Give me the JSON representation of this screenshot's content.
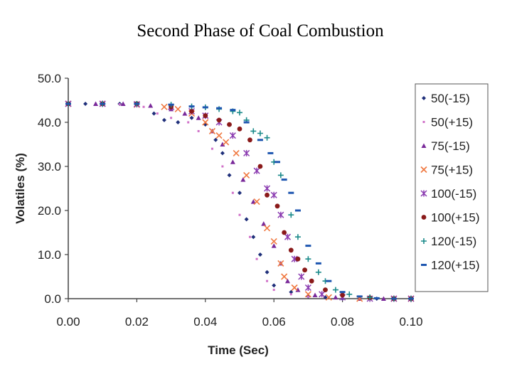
{
  "slide": {
    "title": "Second Phase of Coal Combustion"
  },
  "chart_data": {
    "type": "scatter",
    "title": "Second Phase of Coal Combustion",
    "xlabel": "Time (Sec)",
    "ylabel": "Volatiles (%)",
    "xlim": [
      0.0,
      0.1
    ],
    "ylim": [
      0.0,
      50.0
    ],
    "x_ticks": [
      "0.00",
      "0.02",
      "0.04",
      "0.06",
      "0.08",
      "0.10"
    ],
    "y_ticks": [
      "0.0",
      "10.0",
      "20.0",
      "30.0",
      "40.0",
      "50.0"
    ],
    "grid": false,
    "legend_position": "right",
    "series": [
      {
        "name": "50(-15)",
        "color": "#1f2f7a",
        "marker": "diamond",
        "points": [
          [
            0.0,
            44.2
          ],
          [
            0.005,
            44.2
          ],
          [
            0.01,
            44.2
          ],
          [
            0.015,
            44.2
          ],
          [
            0.02,
            44.1
          ],
          [
            0.025,
            42.0
          ],
          [
            0.028,
            40.5
          ],
          [
            0.032,
            40.0
          ],
          [
            0.036,
            41.0
          ],
          [
            0.04,
            39.5
          ],
          [
            0.043,
            36.0
          ],
          [
            0.045,
            33.0
          ],
          [
            0.047,
            28.0
          ],
          [
            0.05,
            24.0
          ],
          [
            0.052,
            18.0
          ],
          [
            0.054,
            14.0
          ],
          [
            0.056,
            10.0
          ],
          [
            0.058,
            6.0
          ],
          [
            0.06,
            3.0
          ],
          [
            0.065,
            1.5
          ],
          [
            0.07,
            0.5
          ],
          [
            0.075,
            0.3
          ],
          [
            0.08,
            0.0
          ],
          [
            0.085,
            0.0
          ],
          [
            0.09,
            0.0
          ],
          [
            0.095,
            0.0
          ],
          [
            0.1,
            0.0
          ]
        ]
      },
      {
        "name": "50(+15)",
        "color": "#d070c8",
        "marker": "dot",
        "points": [
          [
            0.0,
            44.2
          ],
          [
            0.008,
            44.2
          ],
          [
            0.015,
            44.1
          ],
          [
            0.022,
            43.5
          ],
          [
            0.026,
            42.0
          ],
          [
            0.03,
            41.0
          ],
          [
            0.035,
            40.0
          ],
          [
            0.038,
            38.0
          ],
          [
            0.042,
            34.0
          ],
          [
            0.045,
            30.0
          ],
          [
            0.048,
            24.0
          ],
          [
            0.05,
            19.0
          ],
          [
            0.053,
            14.0
          ],
          [
            0.055,
            9.0
          ],
          [
            0.058,
            4.0
          ],
          [
            0.06,
            2.0
          ],
          [
            0.065,
            1.0
          ],
          [
            0.07,
            0.4
          ],
          [
            0.078,
            0.2
          ],
          [
            0.085,
            0.0
          ],
          [
            0.092,
            0.0
          ],
          [
            0.1,
            0.0
          ]
        ]
      },
      {
        "name": "75(-15)",
        "color": "#7a2a9a",
        "marker": "triangle",
        "points": [
          [
            0.0,
            44.2
          ],
          [
            0.008,
            44.2
          ],
          [
            0.016,
            44.2
          ],
          [
            0.024,
            43.8
          ],
          [
            0.03,
            43.0
          ],
          [
            0.034,
            42.0
          ],
          [
            0.038,
            41.0
          ],
          [
            0.042,
            38.0
          ],
          [
            0.045,
            35.0
          ],
          [
            0.048,
            31.0
          ],
          [
            0.051,
            27.0
          ],
          [
            0.054,
            22.0
          ],
          [
            0.057,
            17.0
          ],
          [
            0.06,
            12.0
          ],
          [
            0.062,
            8.0
          ],
          [
            0.064,
            4.0
          ],
          [
            0.067,
            2.0
          ],
          [
            0.072,
            0.8
          ],
          [
            0.078,
            0.3
          ],
          [
            0.085,
            0.0
          ],
          [
            0.092,
            0.0
          ],
          [
            0.1,
            0.0
          ]
        ]
      },
      {
        "name": "75(+15)",
        "color": "#f07840",
        "marker": "x",
        "points": [
          [
            0.0,
            44.2
          ],
          [
            0.01,
            44.2
          ],
          [
            0.02,
            44.0
          ],
          [
            0.028,
            43.5
          ],
          [
            0.032,
            43.0
          ],
          [
            0.036,
            42.0
          ],
          [
            0.04,
            40.0
          ],
          [
            0.042,
            38.0
          ],
          [
            0.044,
            37.0
          ],
          [
            0.046,
            35.5
          ],
          [
            0.049,
            33.0
          ],
          [
            0.052,
            28.0
          ],
          [
            0.055,
            22.0
          ],
          [
            0.058,
            16.0
          ],
          [
            0.06,
            13.0
          ],
          [
            0.062,
            8.0
          ],
          [
            0.063,
            5.0
          ],
          [
            0.066,
            2.5
          ],
          [
            0.07,
            1.0
          ],
          [
            0.076,
            0.3
          ],
          [
            0.085,
            0.0
          ],
          [
            0.095,
            0.0
          ],
          [
            0.1,
            0.0
          ]
        ]
      },
      {
        "name": "100(-15)",
        "color": "#8a3ab0",
        "marker": "star",
        "points": [
          [
            0.0,
            44.2
          ],
          [
            0.01,
            44.2
          ],
          [
            0.02,
            44.1
          ],
          [
            0.03,
            43.5
          ],
          [
            0.036,
            42.5
          ],
          [
            0.04,
            41.5
          ],
          [
            0.044,
            40.0
          ],
          [
            0.048,
            37.0
          ],
          [
            0.052,
            33.0
          ],
          [
            0.055,
            29.0
          ],
          [
            0.058,
            25.0
          ],
          [
            0.06,
            23.5
          ],
          [
            0.062,
            19.0
          ],
          [
            0.064,
            14.0
          ],
          [
            0.066,
            9.0
          ],
          [
            0.068,
            5.0
          ],
          [
            0.07,
            2.5
          ],
          [
            0.074,
            1.0
          ],
          [
            0.08,
            0.3
          ],
          [
            0.088,
            0.0
          ],
          [
            0.095,
            0.0
          ],
          [
            0.1,
            0.0
          ]
        ]
      },
      {
        "name": "100(+15)",
        "color": "#8a1a1a",
        "marker": "circle",
        "points": [
          [
            0.0,
            44.2
          ],
          [
            0.01,
            44.2
          ],
          [
            0.02,
            44.2
          ],
          [
            0.03,
            43.5
          ],
          [
            0.036,
            42.5
          ],
          [
            0.04,
            41.5
          ],
          [
            0.044,
            40.5
          ],
          [
            0.047,
            39.5
          ],
          [
            0.05,
            38.5
          ],
          [
            0.053,
            36.0
          ],
          [
            0.056,
            30.0
          ],
          [
            0.058,
            23.5
          ],
          [
            0.061,
            21.0
          ],
          [
            0.063,
            15.0
          ],
          [
            0.065,
            11.0
          ],
          [
            0.067,
            9.0
          ],
          [
            0.069,
            6.5
          ],
          [
            0.071,
            4.0
          ],
          [
            0.075,
            2.0
          ],
          [
            0.08,
            0.8
          ],
          [
            0.088,
            0.2
          ],
          [
            0.095,
            0.0
          ],
          [
            0.1,
            0.0
          ]
        ]
      },
      {
        "name": "120(-15)",
        "color": "#1a8a8a",
        "marker": "plus",
        "points": [
          [
            0.0,
            44.2
          ],
          [
            0.01,
            44.2
          ],
          [
            0.02,
            44.2
          ],
          [
            0.03,
            44.0
          ],
          [
            0.036,
            43.6
          ],
          [
            0.04,
            43.4
          ],
          [
            0.044,
            43.0
          ],
          [
            0.048,
            42.5
          ],
          [
            0.05,
            42.2
          ],
          [
            0.052,
            40.5
          ],
          [
            0.054,
            38.0
          ],
          [
            0.056,
            37.5
          ],
          [
            0.058,
            36.5
          ],
          [
            0.06,
            31.0
          ],
          [
            0.062,
            28.0
          ],
          [
            0.065,
            19.0
          ],
          [
            0.067,
            14.0
          ],
          [
            0.07,
            9.0
          ],
          [
            0.073,
            6.0
          ],
          [
            0.075,
            4.0
          ],
          [
            0.078,
            2.0
          ],
          [
            0.082,
            1.0
          ],
          [
            0.088,
            0.3
          ],
          [
            0.095,
            0.0
          ],
          [
            0.1,
            0.0
          ]
        ]
      },
      {
        "name": "120(+15)",
        "color": "#1e56b0",
        "marker": "dash",
        "points": [
          [
            0.0,
            44.2
          ],
          [
            0.01,
            44.2
          ],
          [
            0.02,
            44.2
          ],
          [
            0.03,
            44.0
          ],
          [
            0.036,
            43.6
          ],
          [
            0.04,
            43.4
          ],
          [
            0.044,
            43.2
          ],
          [
            0.048,
            42.8
          ],
          [
            0.052,
            40.0
          ],
          [
            0.056,
            36.0
          ],
          [
            0.059,
            33.0
          ],
          [
            0.061,
            31.0
          ],
          [
            0.063,
            27.0
          ],
          [
            0.065,
            24.0
          ],
          [
            0.067,
            20.0
          ],
          [
            0.07,
            12.0
          ],
          [
            0.073,
            8.0
          ],
          [
            0.076,
            4.0
          ],
          [
            0.08,
            1.5
          ],
          [
            0.085,
            0.5
          ],
          [
            0.09,
            0.1
          ],
          [
            0.095,
            0.0
          ],
          [
            0.1,
            0.0
          ]
        ]
      }
    ]
  }
}
